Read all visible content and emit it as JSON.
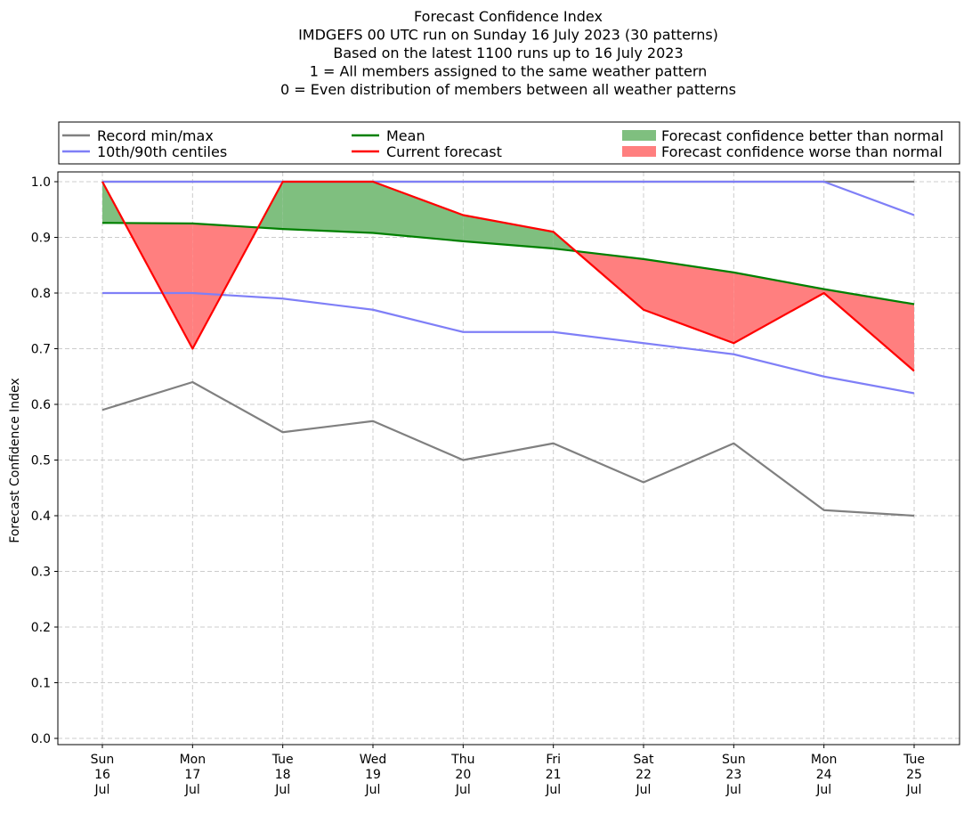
{
  "chart_data": {
    "type": "line",
    "title_lines": [
      "Forecast Confidence Index",
      "IMDGEFS 00 UTC run on Sunday 16 July 2023 (30 patterns)",
      "Based on the latest 1100 runs up to 16 July 2023",
      "1 = All members assigned to the same weather pattern",
      "0 = Even distribution of members between all weather patterns"
    ],
    "ylabel": "Forecast Confidence Index",
    "xlabel": "",
    "ylim": [
      -0.01,
      1.01
    ],
    "yticks": [
      "0.0",
      "0.1",
      "0.2",
      "0.3",
      "0.4",
      "0.5",
      "0.6",
      "0.7",
      "0.8",
      "0.9",
      "1.0"
    ],
    "x": [
      [
        "Sun",
        "16",
        "Jul"
      ],
      [
        "Mon",
        "17",
        "Jul"
      ],
      [
        "Tue",
        "18",
        "Jul"
      ],
      [
        "Wed",
        "19",
        "Jul"
      ],
      [
        "Thu",
        "20",
        "Jul"
      ],
      [
        "Fri",
        "21",
        "Jul"
      ],
      [
        "Sat",
        "22",
        "Jul"
      ],
      [
        "Sun",
        "23",
        "Jul"
      ],
      [
        "Mon",
        "24",
        "Jul"
      ],
      [
        "Tue",
        "25",
        "Jul"
      ]
    ],
    "grid": true,
    "legend": [
      {
        "label": "Record min/max",
        "kind": "line",
        "color": "#808080"
      },
      {
        "label": "10th/90th centiles",
        "kind": "line",
        "color": "#7f7ff7"
      },
      {
        "label": "Mean",
        "kind": "line",
        "color": "#008000"
      },
      {
        "label": "Current forecast",
        "kind": "line",
        "color": "#ff0000"
      },
      {
        "label": "Forecast confidence better than normal",
        "kind": "patch",
        "color": "#7fbf7f"
      },
      {
        "label": "Forecast confidence worse than normal",
        "kind": "patch",
        "color": "#ff7f7f"
      }
    ],
    "series": [
      {
        "name": "Record max",
        "color": "#808080",
        "values": [
          1.0,
          1.0,
          1.0,
          1.0,
          1.0,
          1.0,
          1.0,
          1.0,
          1.0,
          1.0
        ]
      },
      {
        "name": "Record min",
        "color": "#808080",
        "values": [
          0.59,
          0.64,
          0.55,
          0.57,
          0.5,
          0.53,
          0.46,
          0.53,
          0.41,
          0.4
        ]
      },
      {
        "name": "90th centile",
        "color": "#7f7ff7",
        "values": [
          1.0,
          1.0,
          1.0,
          1.0,
          1.0,
          1.0,
          1.0,
          1.0,
          1.0,
          0.94
        ]
      },
      {
        "name": "10th centile",
        "color": "#7f7ff7",
        "values": [
          0.8,
          0.8,
          0.79,
          0.77,
          0.73,
          0.73,
          0.71,
          0.69,
          0.65,
          0.62
        ]
      },
      {
        "name": "Mean",
        "color": "#008000",
        "values": [
          0.926,
          0.925,
          0.915,
          0.908,
          0.893,
          0.88,
          0.861,
          0.837,
          0.807,
          0.78
        ]
      },
      {
        "name": "Current forecast",
        "color": "#ff0000",
        "values": [
          1.0,
          0.7,
          1.0,
          1.0,
          0.94,
          0.91,
          0.77,
          0.71,
          0.8,
          0.66
        ]
      }
    ],
    "fill_better_color": "#7fbf7f",
    "fill_worse_color": "#ff7f7f"
  }
}
